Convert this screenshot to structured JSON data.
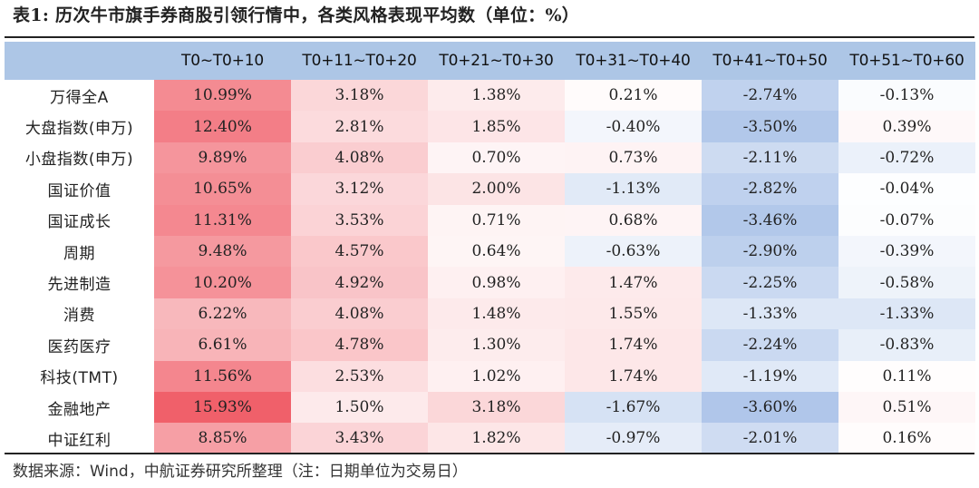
{
  "title": "表1: 历次牛市旗手券商股引领行情中，各类风格表现平均数（单位：%）",
  "table": {
    "corner": "",
    "columns": [
      "T0~T0+10",
      "T0+11~T0+20",
      "T0+21~T0+30",
      "T0+31~T0+40",
      "T0+41~T0+50",
      "T0+51~T0+60"
    ],
    "rows": [
      {
        "label": "万得全A",
        "values": [
          "10.99%",
          "3.18%",
          "1.38%",
          "0.21%",
          "-2.74%",
          "-0.13%"
        ]
      },
      {
        "label": "大盘指数(申万)",
        "values": [
          "12.40%",
          "2.81%",
          "1.85%",
          "-0.40%",
          "-3.50%",
          "0.39%"
        ]
      },
      {
        "label": "小盘指数(申万)",
        "values": [
          "9.89%",
          "4.08%",
          "0.70%",
          "0.73%",
          "-2.11%",
          "-0.72%"
        ]
      },
      {
        "label": "国证价值",
        "values": [
          "10.65%",
          "3.12%",
          "2.00%",
          "-1.13%",
          "-2.82%",
          "-0.04%"
        ]
      },
      {
        "label": "国证成长",
        "values": [
          "11.31%",
          "3.53%",
          "0.71%",
          "0.68%",
          "-3.46%",
          "-0.07%"
        ]
      },
      {
        "label": "周期",
        "values": [
          "9.48%",
          "4.57%",
          "0.64%",
          "-0.63%",
          "-2.90%",
          "-0.39%"
        ]
      },
      {
        "label": "先进制造",
        "values": [
          "10.20%",
          "4.92%",
          "0.98%",
          "1.47%",
          "-2.25%",
          "-0.58%"
        ]
      },
      {
        "label": "消费",
        "values": [
          "6.22%",
          "4.08%",
          "1.48%",
          "1.55%",
          "-1.33%",
          "-1.33%"
        ]
      },
      {
        "label": "医药医疗",
        "values": [
          "6.61%",
          "4.78%",
          "1.30%",
          "1.74%",
          "-2.24%",
          "-0.83%"
        ]
      },
      {
        "label": "科技(TMT)",
        "values": [
          "11.56%",
          "2.53%",
          "1.02%",
          "1.74%",
          "-1.19%",
          "0.11%"
        ]
      },
      {
        "label": "金融地产",
        "values": [
          "15.93%",
          "1.50%",
          "3.18%",
          "-1.67%",
          "-3.60%",
          "0.51%"
        ]
      },
      {
        "label": "中证红利",
        "values": [
          "8.85%",
          "3.43%",
          "1.82%",
          "-0.97%",
          "-2.01%",
          "0.16%"
        ]
      }
    ]
  },
  "source": "数据来源：Wind，中航证券研究所整理（注：日期单位为交易日）",
  "colors": {
    "header_bg": "#adc6e6",
    "positive_max": "#f0606a",
    "negative_max": "#6f98d8",
    "neutral": "#ffffff"
  }
}
